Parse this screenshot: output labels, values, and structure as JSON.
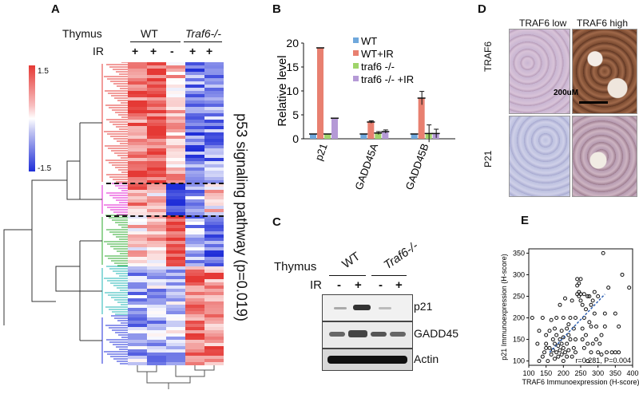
{
  "panels": {
    "a": {
      "letter": "A",
      "tissue_label": "Thymus",
      "group_wt": "WT",
      "group_ko": "Traf6-/-",
      "ir_label": "IR",
      "ir_marks": [
        "+",
        "+",
        "-",
        "+",
        "+"
      ],
      "colorbar_max": "1.5",
      "colorbar_min": "-1.5",
      "pathway_label": "p53 signaling pathway (p=0.019)"
    },
    "b": {
      "letter": "B"
    },
    "c": {
      "letter": "C",
      "tissue_label": "Thymus",
      "group_wt": "WT",
      "group_ko": "Traf6-/-",
      "ir_label": "IR",
      "ir_marks": [
        "-",
        "+",
        "-",
        "+"
      ],
      "bands": [
        "p21",
        "GADD45",
        "Actin"
      ]
    },
    "d": {
      "letter": "D",
      "col_low": "TRAF6 low",
      "col_high": "TRAF6 high",
      "row_traf6": "TRAF6",
      "row_p21": "P21",
      "scale_bar": "200uM"
    },
    "e": {
      "letter": "E"
    }
  },
  "chart_data": [
    {
      "type": "bar",
      "panel": "B",
      "categories": [
        "p21",
        "GADD45A",
        "GADD45B"
      ],
      "series": [
        {
          "name": "WT",
          "color": "#6fa8dc",
          "values": [
            1.0,
            1.0,
            1.0
          ]
        },
        {
          "name": "WT+IR",
          "color": "#e88070",
          "values": [
            19.0,
            3.5,
            8.5
          ]
        },
        {
          "name": "traf6 -/-",
          "color": "#9fd46a",
          "values": [
            1.0,
            1.2,
            1.1
          ]
        },
        {
          "name": "traf6 -/- +IR",
          "color": "#b59ad6",
          "values": [
            4.3,
            1.5,
            1.1
          ]
        }
      ],
      "errors": [
        [
          0,
          0,
          0
        ],
        [
          0,
          0.25,
          1.4
        ],
        [
          0,
          0.3,
          1.8
        ],
        [
          0,
          0.35,
          0.9
        ]
      ],
      "title": "",
      "xlabel": "",
      "ylabel": "Relative level",
      "ylim": [
        0,
        20
      ],
      "yticks": [
        "0",
        "5",
        "10",
        "15",
        "20"
      ],
      "legend_position": "top-right"
    },
    {
      "type": "scatter",
      "panel": "E",
      "xlabel": "TRAF6 Immunoexpression (H-score)",
      "ylabel": "p21 Immunoexpression (H-score)",
      "xlim": [
        100,
        400
      ],
      "ylim": [
        90,
        360
      ],
      "xticks": [
        "100",
        "150",
        "200",
        "250",
        "300",
        "350",
        "400"
      ],
      "yticks": [
        "100",
        "150",
        "200",
        "250",
        "300",
        "350"
      ],
      "annotation": "r=0.281, P=0.004",
      "fit_line": {
        "x": [
          160,
          320
        ],
        "y": [
          120,
          255
        ]
      },
      "points": [
        [
          110,
          200
        ],
        [
          125,
          140
        ],
        [
          130,
          170
        ],
        [
          140,
          110
        ],
        [
          140,
          200
        ],
        [
          145,
          120
        ],
        [
          150,
          140
        ],
        [
          150,
          160
        ],
        [
          155,
          100
        ],
        [
          160,
          130
        ],
        [
          160,
          170
        ],
        [
          165,
          115
        ],
        [
          165,
          195
        ],
        [
          170,
          125
        ],
        [
          170,
          150
        ],
        [
          175,
          105
        ],
        [
          175,
          140
        ],
        [
          180,
          120
        ],
        [
          180,
          160
        ],
        [
          180,
          200
        ],
        [
          185,
          110
        ],
        [
          185,
          135
        ],
        [
          190,
          125
        ],
        [
          190,
          150
        ],
        [
          190,
          230
        ],
        [
          195,
          115
        ],
        [
          195,
          170
        ],
        [
          200,
          100
        ],
        [
          200,
          130
        ],
        [
          200,
          155
        ],
        [
          200,
          200
        ],
        [
          205,
          120
        ],
        [
          205,
          245
        ],
        [
          210,
          110
        ],
        [
          210,
          140
        ],
        [
          210,
          175
        ],
        [
          215,
          125
        ],
        [
          215,
          160
        ],
        [
          220,
          150
        ],
        [
          220,
          200
        ],
        [
          225,
          110
        ],
        [
          225,
          240
        ],
        [
          230,
          130
        ],
        [
          230,
          175
        ],
        [
          235,
          150
        ],
        [
          235,
          200
        ],
        [
          240,
          255
        ],
        [
          240,
          275
        ],
        [
          240,
          290
        ],
        [
          245,
          250
        ],
        [
          245,
          260
        ],
        [
          245,
          280
        ],
        [
          250,
          240
        ],
        [
          250,
          255
        ],
        [
          250,
          290
        ],
        [
          255,
          150
        ],
        [
          255,
          175
        ],
        [
          255,
          230
        ],
        [
          260,
          200
        ],
        [
          260,
          255
        ],
        [
          265,
          160
        ],
        [
          265,
          220
        ],
        [
          270,
          100
        ],
        [
          270,
          140
        ],
        [
          270,
          250
        ],
        [
          275,
          190
        ],
        [
          275,
          250
        ],
        [
          280,
          180
        ],
        [
          280,
          230
        ],
        [
          285,
          140
        ],
        [
          285,
          240
        ],
        [
          290,
          210
        ],
        [
          290,
          260
        ],
        [
          295,
          150
        ],
        [
          295,
          180
        ],
        [
          300,
          120
        ],
        [
          300,
          250
        ],
        [
          305,
          140
        ],
        [
          310,
          115
        ],
        [
          310,
          160
        ],
        [
          315,
          350
        ],
        [
          320,
          180
        ],
        [
          320,
          210
        ],
        [
          325,
          120
        ],
        [
          330,
          270
        ],
        [
          340,
          120
        ],
        [
          350,
          120
        ],
        [
          350,
          210
        ],
        [
          360,
          180
        ],
        [
          360,
          120
        ],
        [
          370,
          300
        ],
        [
          390,
          270
        ],
        [
          130,
          100
        ],
        [
          150,
          130
        ],
        [
          175,
          175
        ],
        [
          195,
          140
        ],
        [
          215,
          185
        ],
        [
          235,
          120
        ],
        [
          260,
          130
        ],
        [
          280,
          120
        ]
      ]
    }
  ]
}
